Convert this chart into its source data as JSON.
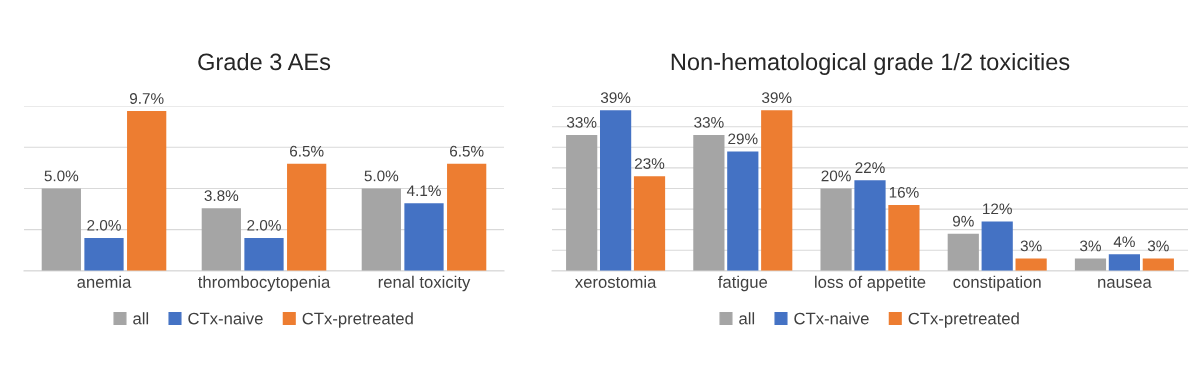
{
  "chart_data": [
    {
      "type": "bar",
      "title": "Grade 3 AEs",
      "categories": [
        "anemia",
        "thrombocytopenia",
        "renal toxicity"
      ],
      "ylim": [
        0,
        10
      ],
      "yticks": [
        {
          "value": 0,
          "label": null
        },
        {
          "value": 2.5,
          "label": null
        },
        {
          "value": 5,
          "label": null
        },
        {
          "value": 7.5,
          "label": null
        },
        {
          "value": 10,
          "label": null
        }
      ],
      "tick_labels": "x",
      "grid": "y",
      "legend": "bottom",
      "series": [
        {
          "name": "all",
          "color": "#a5a5a5",
          "values": [
            5.0,
            3.8,
            5.0
          ],
          "value_labels": [
            "5.0%",
            "3.8%",
            "5.0%"
          ]
        },
        {
          "name": "CTx-naive",
          "color": "#4472c4",
          "values": [
            2.0,
            2.0,
            4.1
          ],
          "value_labels": [
            "2.0%",
            "2.0%",
            "4.1%"
          ]
        },
        {
          "name": "CTx-pretreated",
          "color": "#ed7d31",
          "values": [
            9.7,
            6.5,
            6.5
          ],
          "value_labels": [
            "9.7%",
            "6.5%",
            "6.5%"
          ]
        }
      ]
    },
    {
      "type": "bar",
      "title": "Non-hematological grade 1/2 toxicities",
      "categories": [
        "xerostomia",
        "fatigue",
        "loss of appetite",
        "constipation",
        "nausea"
      ],
      "ylim": [
        0,
        40
      ],
      "yticks": [
        {
          "value": 0,
          "label": null
        },
        {
          "value": 5,
          "label": null
        },
        {
          "value": 10,
          "label": null
        },
        {
          "value": 15,
          "label": null
        },
        {
          "value": 20,
          "label": null
        },
        {
          "value": 25,
          "label": null
        },
        {
          "value": 30,
          "label": null
        },
        {
          "value": 35,
          "label": null
        },
        {
          "value": 40,
          "label": null
        }
      ],
      "tick_labels": "x",
      "grid": "y",
      "legend": "bottom",
      "series": [
        {
          "name": "all",
          "color": "#a5a5a5",
          "values": [
            33,
            33,
            20,
            9,
            3
          ],
          "value_labels": [
            "33%",
            "33%",
            "20%",
            "9%",
            "3%"
          ]
        },
        {
          "name": "CTx-naive",
          "color": "#4472c4",
          "values": [
            39,
            29,
            22,
            12,
            4
          ],
          "value_labels": [
            "39%",
            "29%",
            "22%",
            "12%",
            "4%"
          ]
        },
        {
          "name": "CTx-pretreated",
          "color": "#ed7d31",
          "values": [
            23,
            39,
            16,
            3,
            3
          ],
          "value_labels": [
            "23%",
            "39%",
            "16%",
            "3%",
            "3%"
          ]
        }
      ]
    }
  ]
}
